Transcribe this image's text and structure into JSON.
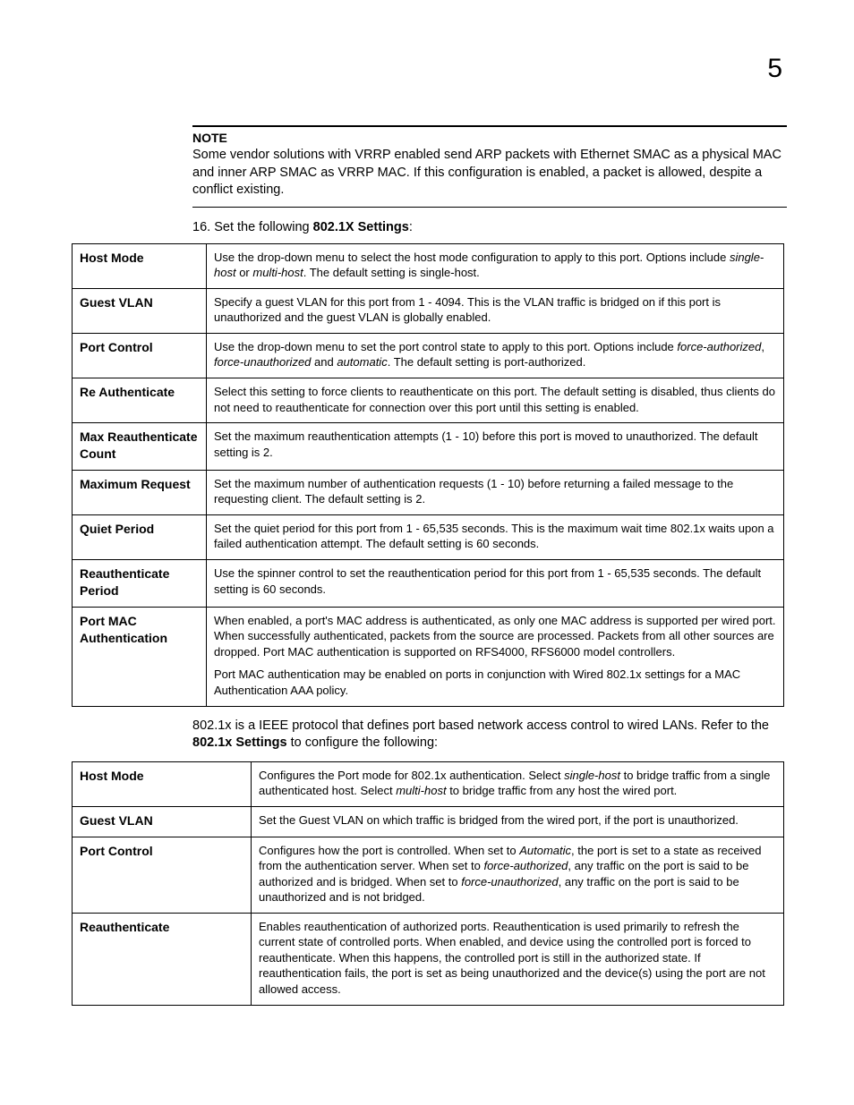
{
  "chapter_number": "5",
  "note_label": "NOTE",
  "note_body": "Some vendor solutions with VRRP enabled send ARP packets with Ethernet SMAC as a physical MAC and inner ARP SMAC as VRRP MAC. If this configuration is enabled, a packet is allowed, despite a conflict existing.",
  "step_number": "16.",
  "step_prefix": "Set the following ",
  "step_bold": "802.1X Settings",
  "step_suffix": ":",
  "table1": {
    "rows": [
      {
        "label": "Host Mode",
        "segs": [
          {
            "t": "Use the drop-down menu to select the host mode configuration to apply to this port. Options include "
          },
          {
            "t": "single-host",
            "i": true
          },
          {
            "t": " or "
          },
          {
            "t": "multi-host",
            "i": true
          },
          {
            "t": ". The default setting is single-host."
          }
        ]
      },
      {
        "label": "Guest VLAN",
        "segs": [
          {
            "t": "Specify a guest VLAN for this port from 1 - 4094. This is the VLAN traffic is bridged on if this port is unauthorized and the guest VLAN is globally enabled."
          }
        ]
      },
      {
        "label": "Port Control",
        "segs": [
          {
            "t": "Use the drop-down menu to set the port control state to apply to this port. Options include "
          },
          {
            "t": "force-authorized",
            "i": true
          },
          {
            "t": ", "
          },
          {
            "t": "force-unauthorized",
            "i": true
          },
          {
            "t": " and "
          },
          {
            "t": "automatic",
            "i": true
          },
          {
            "t": ". The default setting is port-authorized."
          }
        ]
      },
      {
        "label": "Re Authenticate",
        "segs": [
          {
            "t": "Select this setting to force clients to reauthenticate on this port. The default setting is disabled, thus clients do not need to reauthenticate for connection over this port until this setting is enabled."
          }
        ]
      },
      {
        "label": "Max Reauthenticate Count",
        "segs": [
          {
            "t": "Set the maximum reauthentication attempts (1 - 10) before this port is moved to unauthorized. The default setting is 2."
          }
        ]
      },
      {
        "label": "Maximum Request",
        "segs": [
          {
            "t": "Set the maximum number of authentication requests (1 - 10) before returning a failed message to the requesting client. The default setting is 2."
          }
        ]
      },
      {
        "label": "Quiet Period",
        "segs": [
          {
            "t": "Set the quiet period for this port from 1 - 65,535 seconds. This is the maximum wait time 802.1x waits upon a failed authentication attempt. The default setting is 60 seconds."
          }
        ]
      },
      {
        "label": "Reauthenticate Period",
        "segs": [
          {
            "t": "Use the spinner control to set the reauthentication period for this port from 1 - 65,535 seconds. The default setting is 60 seconds."
          }
        ]
      },
      {
        "label": "Port MAC Authentication",
        "segs": [
          {
            "t": "When enabled, a port's MAC address is authenticated, as only one MAC address is supported per wired port. When successfully authenticated, packets from the source are processed. Packets from all other sources are dropped. Port MAC authentication is supported on RFS4000, RFS6000 model controllers."
          }
        ],
        "segs2": [
          {
            "t": "Port MAC authentication may be enabled on ports in conjunction with Wired 802.1x settings for a MAC Authentication AAA policy."
          }
        ]
      }
    ]
  },
  "midpara_pre": "802.1x is a IEEE protocol that defines port based network access control to wired LANs. Refer to the ",
  "midpara_bold": "802.1x Settings",
  "midpara_post": " to configure the following:",
  "table2": {
    "rows": [
      {
        "label": "Host Mode",
        "segs": [
          {
            "t": "Configures the Port mode for 802.1x authentication. Select "
          },
          {
            "t": "single-host",
            "i": true
          },
          {
            "t": " to bridge traffic from a single authenticated host. Select "
          },
          {
            "t": "multi-host",
            "i": true
          },
          {
            "t": " to bridge traffic from any host the wired port."
          }
        ]
      },
      {
        "label": "Guest VLAN",
        "segs": [
          {
            "t": "Set the Guest VLAN on which traffic is bridged from the wired port, if the port is unauthorized."
          }
        ]
      },
      {
        "label": "Port Control",
        "segs": [
          {
            "t": "Configures how the port is controlled. When set to "
          },
          {
            "t": "Automatic",
            "i": true
          },
          {
            "t": ", the port is set to a state as received from the authentication server. When set to "
          },
          {
            "t": "force-authorized",
            "i": true
          },
          {
            "t": ", any traffic on the port is said to be authorized and is bridged. When set to "
          },
          {
            "t": "force-unauthorized",
            "i": true
          },
          {
            "t": ", any traffic on the port is said to be unauthorized and is not bridged."
          }
        ]
      },
      {
        "label": "Reauthenticate",
        "segs": [
          {
            "t": "Enables reauthentication of authorized ports. Reauthentication is used primarily to refresh the current state of controlled ports. When enabled, and device using the controlled port is forced to reauthenticate. When this happens, the controlled port is still in the authorized state. If reauthentication fails, the port is set as being unauthorized and the device(s) using the port are not allowed access."
          }
        ]
      }
    ]
  }
}
